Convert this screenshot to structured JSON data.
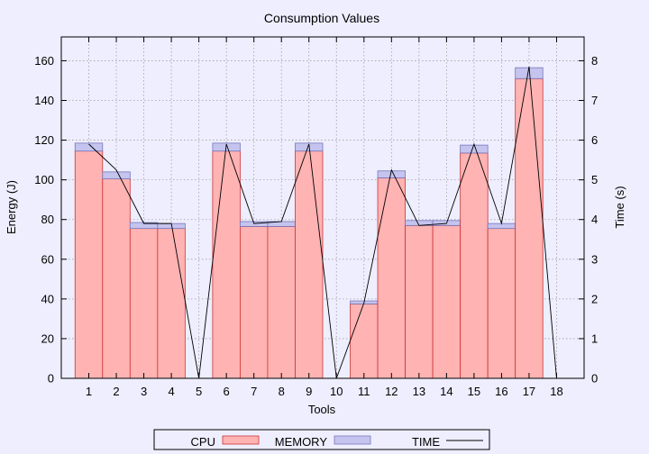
{
  "chart_data": {
    "type": "bar",
    "title": "Consumption Values",
    "xlabel": "Tools",
    "ylabel": "Energy (J)",
    "y2label": "Time (s)",
    "categories": [
      "1",
      "2",
      "3",
      "4",
      "5",
      "6",
      "7",
      "8",
      "9",
      "10",
      "11",
      "12",
      "13",
      "14",
      "15",
      "16",
      "17",
      "18"
    ],
    "ylim": [
      0,
      172
    ],
    "y2lim": [
      0,
      8.6
    ],
    "yticks": [
      0,
      20,
      40,
      60,
      80,
      100,
      120,
      140,
      160
    ],
    "y2ticks": [
      0,
      1,
      2,
      3,
      4,
      5,
      6,
      7,
      8
    ],
    "grid": true,
    "stacked": true,
    "legend_position": "bottom",
    "series": [
      {
        "name": "CPU",
        "kind": "bar",
        "axis": "left",
        "color": "#ffb3b3",
        "edge": "#cc3333",
        "values": [
          114.5,
          100.5,
          75.5,
          75.5,
          0,
          114.5,
          76.5,
          76.5,
          114.5,
          0,
          37.5,
          101,
          77,
          77,
          113.5,
          75.5,
          151,
          0
        ]
      },
      {
        "name": "MEMORY",
        "kind": "bar",
        "axis": "left",
        "color": "#c4c4ee",
        "edge": "#7777bb",
        "values": [
          4,
          3.5,
          3,
          2.5,
          0,
          4,
          2.5,
          2.5,
          4,
          0,
          1.5,
          3.5,
          2.5,
          2.5,
          4,
          2.5,
          5.5,
          0
        ]
      },
      {
        "name": "TIME",
        "kind": "line",
        "axis": "right",
        "color": "#000000",
        "values": [
          5.9,
          5.25,
          3.9,
          3.9,
          0,
          5.9,
          3.9,
          3.95,
          5.9,
          0,
          1.9,
          5.25,
          3.85,
          3.9,
          5.9,
          3.9,
          7.85,
          0
        ]
      }
    ]
  }
}
